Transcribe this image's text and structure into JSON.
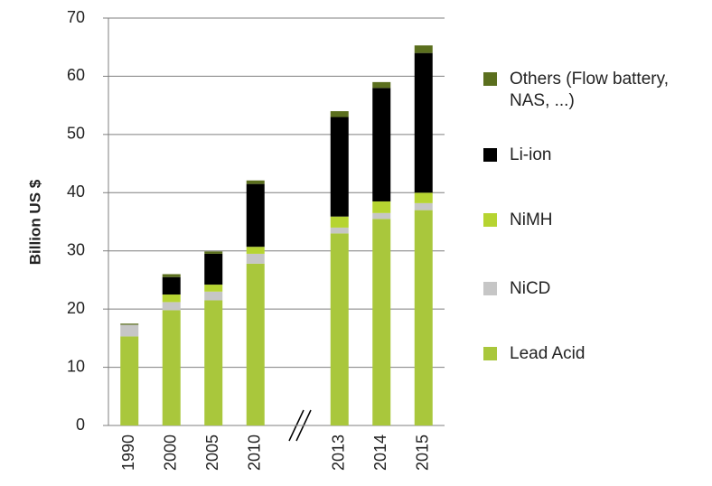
{
  "chart_data": {
    "type": "stacked_bar",
    "y_label": "Billion US $",
    "categories": [
      "1990",
      "2000",
      "2005",
      "2010",
      null,
      "2013",
      "2014",
      "2015"
    ],
    "series": [
      {
        "name": "Lead Acid",
        "color": "#a9c73c",
        "values": [
          15.3,
          19.8,
          21.5,
          27.8,
          null,
          33,
          35.5,
          37
        ]
      },
      {
        "name": "NiCD",
        "color": "#c6c6c6",
        "values": [
          2.0,
          1.4,
          1.5,
          1.7,
          null,
          1.0,
          1.0,
          1.2
        ]
      },
      {
        "name": "NiMH",
        "color": "#b6d431",
        "values": [
          0,
          1.3,
          1.2,
          1.2,
          null,
          1.9,
          2.0,
          1.8
        ]
      },
      {
        "name": "Li-ion",
        "color": "#000000",
        "values": [
          0,
          3.0,
          5.3,
          10.8,
          null,
          17.1,
          19.5,
          24
        ]
      },
      {
        "name": "Others (Flow battery, NAS, ...)",
        "color": "#5b6f1e",
        "values": [
          0.2,
          0.5,
          0.4,
          0.6,
          null,
          1.0,
          1.0,
          1.3
        ]
      }
    ],
    "ylim": [
      0,
      70
    ],
    "yticks": [
      0,
      10,
      20,
      30,
      40,
      50,
      60,
      70
    ],
    "grid": true
  }
}
